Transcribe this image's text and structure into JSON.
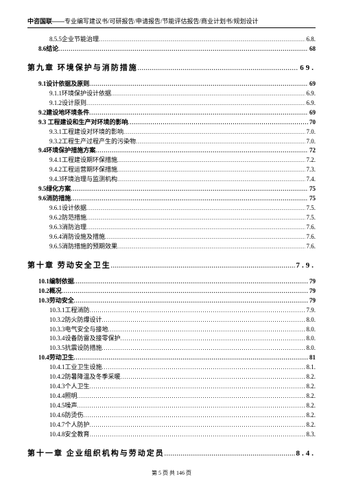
{
  "header": {
    "brand": "中咨国联——",
    "tagline": "专业编写建议书/可研报告/申请报告/节能评估报告/商业计划书/规划设计"
  },
  "pre": [
    {
      "label": "8.5.5企业节能治理",
      "page": "6.8.",
      "indent": 2,
      "bold": false
    },
    {
      "label": "8.6结论",
      "page": "68",
      "indent": 1,
      "bold": true
    }
  ],
  "chapters": [
    {
      "title": "第九章  环境保护与消防措施",
      "page": "69.",
      "sections": [
        {
          "label": "9.1设计依据及原则",
          "page": "69",
          "indent": 1,
          "bold": true
        },
        {
          "label": "9.1.1环境保护设计依据",
          "page": "6.9.",
          "indent": 2,
          "bold": false
        },
        {
          "label": "9.1.2设计原则",
          "page": "6.9.",
          "indent": 2,
          "bold": false
        },
        {
          "label": "9.2建设地环境条件",
          "page": "69",
          "indent": 1,
          "bold": true
        },
        {
          "label": "9.3 工程建设和生产对环境的影响",
          "page": "70",
          "indent": 1,
          "bold": true
        },
        {
          "label": "9.3.1工程建设对环境的影响",
          "page": "7.0.",
          "indent": 2,
          "bold": false
        },
        {
          "label": "9.3.2工程生产过程产生的污染物",
          "page": "7.0.",
          "indent": 2,
          "bold": false
        },
        {
          "label": "9.4环境保护措施方案",
          "page": "72",
          "indent": 1,
          "bold": true
        },
        {
          "label": "9.4.1工程建设期环保措施",
          "page": "7.2.",
          "indent": 2,
          "bold": false
        },
        {
          "label": "9.4.2工程运营期环保措施",
          "page": "7.3.",
          "indent": 2,
          "bold": false
        },
        {
          "label": "9.4.3环境治理与监测机构",
          "page": "7.4.",
          "indent": 2,
          "bold": false
        },
        {
          "label": "9.5绿化方案",
          "page": "75",
          "indent": 1,
          "bold": true
        },
        {
          "label": "9.6消防措施",
          "page": "75",
          "indent": 1,
          "bold": true
        },
        {
          "label": "9.6.1设计依据",
          "page": "7.5.",
          "indent": 2,
          "bold": false
        },
        {
          "label": "9.6.2防范措施",
          "page": "7.5.",
          "indent": 2,
          "bold": false
        },
        {
          "label": "9.6.3消防治理",
          "page": "7.6.",
          "indent": 2,
          "bold": false
        },
        {
          "label": "9.6.4消防设施及措施",
          "page": "7.6.",
          "indent": 2,
          "bold": false
        },
        {
          "label": "9.6.5消防措施的预期效果",
          "page": "7.6.",
          "indent": 2,
          "bold": false
        }
      ]
    },
    {
      "title": "第十章  劳动安全卫生",
      "page": "7.9.",
      "sections": [
        {
          "label": "10.1编制依据",
          "page": "79",
          "indent": 1,
          "bold": true
        },
        {
          "label": "10.2概况",
          "page": "79",
          "indent": 1,
          "bold": true
        },
        {
          "label": "10.3劳动安全",
          "page": "79",
          "indent": 1,
          "bold": true
        },
        {
          "label": "10.3.1工程消防",
          "page": "7.9.",
          "indent": 2,
          "bold": false
        },
        {
          "label": "10.3.2防火防爆设计",
          "page": "8.0.",
          "indent": 2,
          "bold": false
        },
        {
          "label": "10.3.3电气安全与接地",
          "page": "8.0.",
          "indent": 2,
          "bold": false
        },
        {
          "label": "10.3.4设备防雷及接零保护",
          "page": "8.0.",
          "indent": 2,
          "bold": false
        },
        {
          "label": "10.3.5抗震设防措施",
          "page": "8.0.",
          "indent": 2,
          "bold": false
        },
        {
          "label": "10.4劳动卫生",
          "page": "81",
          "indent": 1,
          "bold": true
        },
        {
          "label": "10.4.1工业卫生设施",
          "page": "8.1.",
          "indent": 2,
          "bold": false
        },
        {
          "label": "10.4.2防暑降温及冬季采暖",
          "page": "8.2.",
          "indent": 2,
          "bold": false
        },
        {
          "label": "10.4.3个人卫生",
          "page": "8.2.",
          "indent": 2,
          "bold": false
        },
        {
          "label": "10.4.4照明",
          "page": "8.2.",
          "indent": 2,
          "bold": false
        },
        {
          "label": "10.4.5噪声",
          "page": "8.2.",
          "indent": 2,
          "bold": false
        },
        {
          "label": "10.4.6防烫伤",
          "page": "8.2.",
          "indent": 2,
          "bold": false
        },
        {
          "label": "10.4.7个人防护",
          "page": "8.2.",
          "indent": 2,
          "bold": false
        },
        {
          "label": "10.4.8安全教育",
          "page": "8.3.",
          "indent": 2,
          "bold": false
        }
      ]
    },
    {
      "title": "第十一章  企业组织机构与劳动定员",
      "page": "8.4.",
      "sections": []
    }
  ],
  "footer": {
    "text": "第 5 页  共 146 页"
  }
}
